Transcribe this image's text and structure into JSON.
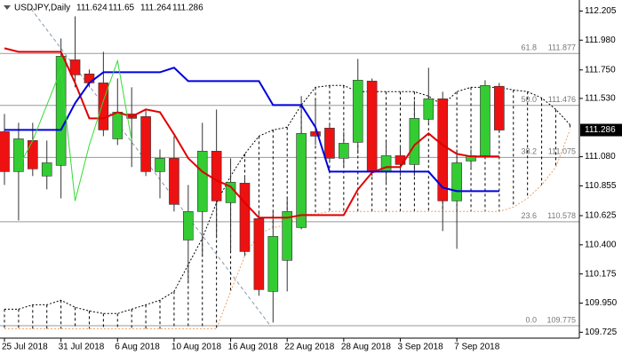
{
  "chart_data": {
    "type": "candlestick",
    "title": "USDJPY,Daily",
    "categories": [
      "25 Jul 2018",
      null,
      null,
      null,
      "31 Jul 2018",
      null,
      null,
      null,
      "6 Aug 2018",
      null,
      null,
      null,
      "10 Aug 2018",
      null,
      null,
      null,
      "16 Aug 2018",
      null,
      null,
      null,
      "22 Aug 2018",
      null,
      null,
      null,
      "28 Aug 2018",
      null,
      null,
      null,
      "3 Sep 2018",
      null,
      null,
      null,
      "7 Sep 2018",
      null,
      null,
      null,
      null,
      null,
      null,
      null,
      null
    ],
    "open": [
      111.273,
      110.965,
      111.205,
      110.931,
      111.013,
      111.828,
      111.719,
      111.65,
      111.218,
      111.41,
      111.39,
      110.965,
      111.068,
      110.437,
      110.657,
      111.123,
      110.725,
      110.876,
      110.602,
      110.04,
      110.28,
      110.533,
      111.273,
      111.301,
      111.068,
      111.191,
      111.664,
      110.965,
      111.088,
      111.02,
      111.369,
      111.527,
      110.739,
      111.047,
      111.088,
      111.624,
      null,
      null,
      null,
      null,
      null
    ],
    "high": [
      111.41,
      111.342,
      111.342,
      111.205,
      111.993,
      112.164,
      111.753,
      111.89,
      111.684,
      111.616,
      111.445,
      111.136,
      111.239,
      110.862,
      111.342,
      111.445,
      111.068,
      110.931,
      110.657,
      110.657,
      110.759,
      111.548,
      111.513,
      111.342,
      111.273,
      111.835,
      111.684,
      111.205,
      111.17,
      111.513,
      111.767,
      111.582,
      111.136,
      111.136,
      111.671,
      111.65,
      null,
      null,
      null,
      null,
      null
    ],
    "low": [
      110.862,
      110.588,
      110.931,
      110.828,
      110.759,
      111.616,
      111.616,
      111.239,
      111.17,
      111.0,
      110.931,
      110.759,
      110.657,
      110.109,
      110.314,
      110.451,
      110.348,
      110.314,
      110.006,
      109.8,
      110.04,
      110.52,
      111.17,
      111.033,
      111.0,
      111.102,
      110.931,
      110.862,
      110.931,
      110.931,
      111.342,
      110.506,
      110.369,
      110.986,
      111.068,
      111.264,
      null,
      null,
      null,
      null,
      null
    ],
    "close": [
      110.965,
      111.218,
      110.986,
      111.033,
      111.856,
      111.712,
      111.65,
      111.287,
      111.424,
      111.376,
      110.965,
      111.068,
      110.712,
      110.657,
      111.123,
      110.739,
      110.883,
      110.348,
      110.054,
      110.465,
      110.657,
      111.26,
      111.239,
      111.068,
      111.184,
      111.671,
      110.965,
      111.088,
      111.02,
      111.376,
      111.527,
      110.739,
      111.033,
      111.088,
      111.63,
      111.286,
      null,
      null,
      null,
      null,
      null
    ],
    "up_color": "#33cc33",
    "down_color": "#ee1111",
    "series": [
      {
        "color": "#e00000",
        "width": 2,
        "dash": "none",
        "values": [
          111.917,
          111.89,
          111.89,
          111.89,
          111.89,
          111.65,
          111.376,
          111.376,
          111.424,
          111.39,
          111.445,
          111.424,
          111.253,
          111.068,
          110.965,
          110.897,
          110.849,
          110.725,
          110.609,
          110.609,
          110.609,
          110.629,
          110.629,
          110.629,
          110.629,
          110.828,
          110.958,
          111.0,
          111.0,
          111.17,
          111.26,
          111.17,
          111.102,
          111.082,
          111.082,
          111.082,
          null,
          null,
          null,
          null,
          null
        ]
      },
      {
        "color": "#0000dd",
        "width": 2,
        "dash": "none",
        "values": [
          111.287,
          111.287,
          111.287,
          111.287,
          111.287,
          111.493,
          111.65,
          111.732,
          111.732,
          111.732,
          111.732,
          111.732,
          111.767,
          111.664,
          111.664,
          111.664,
          111.664,
          111.664,
          111.664,
          111.479,
          111.479,
          111.479,
          111.308,
          110.965,
          110.965,
          110.965,
          110.965,
          110.965,
          110.965,
          110.965,
          110.965,
          110.842,
          110.814,
          110.814,
          110.814,
          110.814,
          null,
          null,
          null,
          null,
          null
        ]
      },
      {
        "color": "#33dd33",
        "width": 1,
        "dash": "none",
        "values": [
          null,
          111.0,
          111.205,
          111.479,
          111.753,
          110.739,
          111.17,
          111.513,
          111.821,
          111.205,
          null,
          null,
          null,
          null,
          null,
          null,
          null,
          null,
          null,
          null,
          null,
          null,
          null,
          null,
          null,
          null,
          null,
          null,
          null,
          null,
          null,
          null,
          null,
          null,
          null,
          null,
          null,
          null,
          null,
          null,
          null
        ]
      }
    ],
    "cloud": {
      "upper": {
        "color": "#000000",
        "values": [
          109.903,
          109.903,
          109.937,
          109.937,
          109.972,
          109.917,
          109.889,
          109.869,
          109.869,
          109.903,
          109.937,
          109.972,
          110.04,
          110.246,
          110.451,
          110.725,
          110.931,
          111.102,
          111.239,
          111.287,
          111.308,
          111.479,
          111.616,
          111.63,
          111.63,
          111.582,
          111.582,
          111.582,
          111.582,
          111.582,
          111.548,
          111.479,
          111.582,
          111.616,
          111.616,
          111.616,
          111.595,
          111.582,
          111.534,
          111.445,
          111.328
        ]
      },
      "lower": {
        "color": "#f0a060",
        "values": [
          109.752,
          109.752,
          109.752,
          109.752,
          109.752,
          109.752,
          109.752,
          109.752,
          109.752,
          109.752,
          109.752,
          109.752,
          109.752,
          109.752,
          109.752,
          109.752,
          110.04,
          110.314,
          110.485,
          110.533,
          110.554,
          110.636,
          110.636,
          110.657,
          110.657,
          110.657,
          110.657,
          110.657,
          110.657,
          110.657,
          110.657,
          110.657,
          110.657,
          110.657,
          110.657,
          110.657,
          110.691,
          110.759,
          110.862,
          111.0,
          111.287
        ]
      }
    },
    "fib_levels": [
      {
        "label": "61.8",
        "value": 111.877
      },
      {
        "label": "50.0",
        "value": 111.476
      },
      {
        "label": "38.2",
        "value": 111.075
      },
      {
        "label": "23.6",
        "value": 110.578
      },
      {
        "label": "0.0",
        "value": 109.775
      }
    ],
    "ylim": [
      109.7,
      112.29
    ],
    "yticks": [
      112.205,
      {
        "value": 111.98,
        "label": "111.980"
      },
      {
        "value": 111.75,
        "label": "111.750"
      },
      {
        "value": 111.53,
        "label": "111.530"
      },
      {
        "value": 111.08,
        "label": "111.080"
      },
      110.855,
      110.625,
      {
        "value": 110.4,
        "label": "110.400"
      },
      110.175,
      {
        "value": 109.95,
        "label": "109.950"
      },
      109.725
    ],
    "grid": false
  }
}
